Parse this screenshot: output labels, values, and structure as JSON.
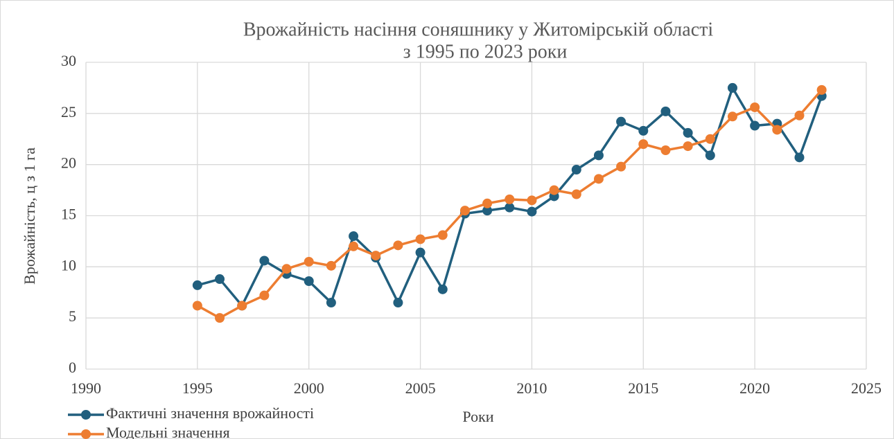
{
  "chart_data": {
    "type": "line",
    "title": [
      "Врожайність насіння соняшнику у Житомірській області",
      "з 1995 по 2023 роки"
    ],
    "xlabel": "Роки",
    "ylabel": "Врожайність, ц з 1 га",
    "x": [
      1995,
      1996,
      1997,
      1998,
      1999,
      2000,
      2001,
      2002,
      2003,
      2004,
      2005,
      2006,
      2007,
      2008,
      2009,
      2010,
      2011,
      2012,
      2013,
      2014,
      2015,
      2016,
      2017,
      2018,
      2019,
      2020,
      2021,
      2022,
      2023
    ],
    "series": [
      {
        "name": "Фактичні значення врожайності",
        "color": "#215f7e",
        "values": [
          8.2,
          8.8,
          6.2,
          10.6,
          9.3,
          8.6,
          6.5,
          13.0,
          10.9,
          6.5,
          11.4,
          7.8,
          15.2,
          15.5,
          15.8,
          15.4,
          16.9,
          19.5,
          20.9,
          24.2,
          23.3,
          25.2,
          23.1,
          20.9,
          27.5,
          23.8,
          24.0,
          20.7,
          26.7
        ]
      },
      {
        "name": "Модельні значення",
        "color": "#ed7d31",
        "values": [
          6.2,
          5.0,
          6.2,
          7.2,
          9.8,
          10.5,
          10.1,
          12.0,
          11.1,
          12.1,
          12.7,
          13.1,
          15.5,
          16.2,
          16.6,
          16.5,
          17.5,
          17.1,
          18.6,
          19.8,
          22.0,
          21.4,
          21.8,
          22.5,
          24.7,
          25.6,
          23.4,
          24.8,
          27.3
        ]
      }
    ],
    "xlim": [
      1990,
      2025
    ],
    "xticks": [
      1990,
      1995,
      2000,
      2005,
      2010,
      2015,
      2020,
      2025
    ],
    "ylim": [
      0,
      30
    ],
    "yticks": [
      0,
      5,
      10,
      15,
      20,
      25,
      30
    ],
    "grid": true,
    "legend": "bottom-left"
  }
}
